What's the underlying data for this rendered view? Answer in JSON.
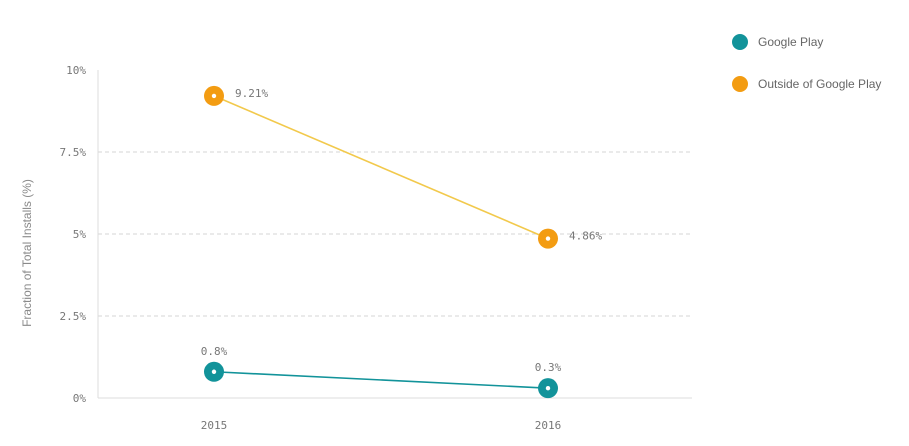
{
  "chart_data": {
    "type": "line",
    "categories": [
      "2015",
      "2016"
    ],
    "series": [
      {
        "name": "Google Play",
        "values": [
          0.8,
          0.3
        ],
        "labels": [
          "0.8%",
          "0.3%"
        ],
        "color": "#12939a"
      },
      {
        "name": "Outside of Google Play",
        "values": [
          9.21,
          4.86
        ],
        "labels": [
          "9.21%",
          "4.86%"
        ],
        "color": "#f39c12",
        "line_color": "#f2c94c"
      }
    ],
    "yticks": [
      {
        "value": 0,
        "label": "0%"
      },
      {
        "value": 2.5,
        "label": "2.5%"
      },
      {
        "value": 5,
        "label": "5%"
      },
      {
        "value": 7.5,
        "label": "7.5%"
      },
      {
        "value": 10,
        "label": "10%"
      }
    ],
    "ylim": [
      0,
      10
    ],
    "ylabel": "Fraction of Total Installs (%)",
    "xlabel": "",
    "title": "",
    "grid": "horizontal dashed",
    "legend_position": "top-right"
  }
}
